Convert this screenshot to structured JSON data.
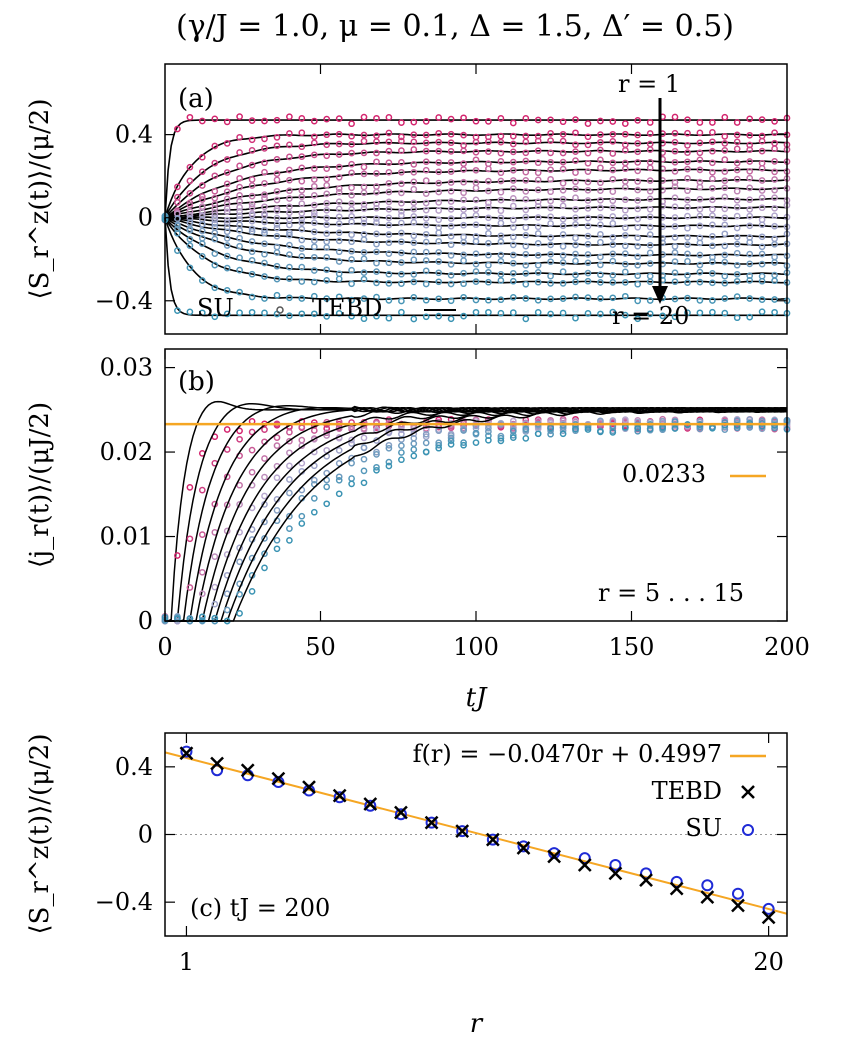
{
  "figure_title": "(γ/J = 1.0, μ = 0.1, Δ = 1.5, Δ′ = 0.5)",
  "chart_data": [
    {
      "panel": "(a)",
      "type": "line",
      "ylabel": "⟨S_r^z(t)⟩/(μ/2)",
      "xlabel": "",
      "xlim": [
        0,
        200
      ],
      "ylim": [
        -0.56,
        0.74
      ],
      "yticks": [
        "0.4",
        "0",
        "−0.4"
      ],
      "ytick_values": [
        0.4,
        0,
        -0.4
      ],
      "legend": [
        "SU",
        "TEBD"
      ],
      "legend_placement": "bottom-left",
      "annotation_top": "r = 1",
      "annotation_bottom": "r = 20",
      "sites": [
        1,
        2,
        3,
        4,
        5,
        6,
        7,
        8,
        9,
        10,
        11,
        12,
        13,
        14,
        15,
        16,
        17,
        18,
        19,
        20
      ],
      "steady_values": [
        0.47,
        0.4,
        0.36,
        0.32,
        0.27,
        0.23,
        0.18,
        0.14,
        0.09,
        0.05,
        0.0,
        -0.04,
        -0.09,
        -0.13,
        -0.18,
        -0.22,
        -0.27,
        -0.31,
        -0.39,
        -0.47
      ],
      "series": [
        {
          "name": "SU",
          "marker": "circle"
        },
        {
          "name": "TEBD",
          "marker": "line"
        }
      ]
    },
    {
      "panel": "(b)",
      "type": "line",
      "ylabel": "⟨j_r(t)⟩/(μJ/2)",
      "xlabel": "tJ",
      "xlim": [
        0,
        200
      ],
      "ylim": [
        0,
        0.0322
      ],
      "xticks": [
        "0",
        "50",
        "100",
        "150",
        "200"
      ],
      "xtick_values": [
        0,
        50,
        100,
        150,
        200
      ],
      "yticks": [
        "0",
        "0.01",
        "0.02",
        "0.03"
      ],
      "ytick_values": [
        0,
        0.01,
        0.02,
        0.03
      ],
      "reference_line": {
        "label": "0.0233",
        "value": 0.0233,
        "color": "#f5a623"
      },
      "annotation": "r = 5 . . . 15",
      "sites": [
        5,
        6,
        7,
        8,
        9,
        10,
        11,
        12,
        13,
        14,
        15
      ],
      "plateau_value": 0.025,
      "series": [
        {
          "name": "SU",
          "marker": "circle"
        },
        {
          "name": "TEBD",
          "marker": "line"
        }
      ]
    },
    {
      "panel": "(c)",
      "type": "scatter",
      "annotation": "(c) tJ = 200",
      "ylabel": "⟨S_r^z(t)⟩/(μ/2)",
      "xlabel": "r",
      "xlim": [
        0.3,
        20.6
      ],
      "ylim": [
        -0.6,
        0.6
      ],
      "xticks": [
        "1",
        "20"
      ],
      "xtick_values": [
        1,
        20
      ],
      "yticks": [
        "0.4",
        "0",
        "−0.4"
      ],
      "ytick_values": [
        0.4,
        0,
        -0.4
      ],
      "fit": {
        "label": "f(r) = −0.0470r + 0.4997",
        "slope": -0.047,
        "intercept": 0.4997,
        "color": "#f5a623"
      },
      "x": [
        1,
        2,
        3,
        4,
        5,
        6,
        7,
        8,
        9,
        10,
        11,
        12,
        13,
        14,
        15,
        16,
        17,
        18,
        19,
        20
      ],
      "series": [
        {
          "name": "TEBD",
          "marker": "cross",
          "color": "#000000",
          "values": [
            0.48,
            0.42,
            0.38,
            0.33,
            0.28,
            0.23,
            0.18,
            0.13,
            0.07,
            0.02,
            -0.03,
            -0.08,
            -0.13,
            -0.18,
            -0.23,
            -0.27,
            -0.32,
            -0.37,
            -0.42,
            -0.49
          ]
        },
        {
          "name": "SU",
          "marker": "circle",
          "color": "#1f2bd6",
          "values": [
            0.49,
            0.38,
            0.35,
            0.31,
            0.26,
            0.22,
            0.17,
            0.12,
            0.07,
            0.02,
            -0.03,
            -0.07,
            -0.11,
            -0.14,
            -0.18,
            -0.23,
            -0.28,
            -0.3,
            -0.35,
            -0.44
          ]
        }
      ]
    }
  ],
  "colors": {
    "magenta": "#d4246e",
    "teal": "#3a93b3",
    "lavender": "#b8a8cf",
    "orange": "#f5a623",
    "blue": "#1f2bd6"
  }
}
